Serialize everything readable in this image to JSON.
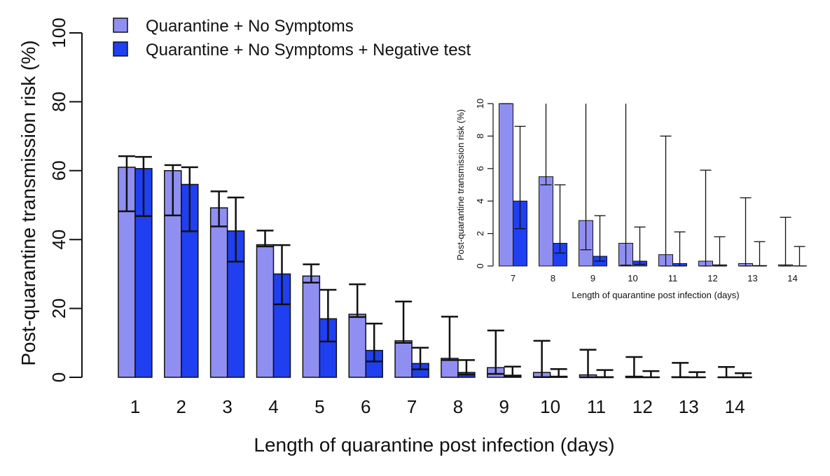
{
  "chart_data": [
    {
      "type": "bar",
      "title": "",
      "xlabel": "Length of quarantine post infection (days)",
      "ylabel": "Post-quarantine transmission risk (%)",
      "ylim": [
        0,
        100
      ],
      "yticks": [
        0,
        20,
        40,
        60,
        80,
        100
      ],
      "categories": [
        "1",
        "2",
        "3",
        "4",
        "5",
        "6",
        "7",
        "8",
        "9",
        "10",
        "11",
        "12",
        "13",
        "14"
      ],
      "legend_position": "top-left",
      "series": [
        {
          "name": "Quarantine + No Symptoms",
          "color": "#8f8ff2",
          "values": [
            61.0,
            60.0,
            49.2,
            38.5,
            29.4,
            18.3,
            10.6,
            5.5,
            2.8,
            1.4,
            0.7,
            0.3,
            0.15,
            0.07
          ],
          "lower": [
            48.2,
            47.0,
            43.8,
            38.0,
            27.5,
            17.5,
            10.0,
            5.0,
            1.0,
            0.05,
            0.0,
            0.0,
            0.0,
            0.0
          ],
          "upper": [
            64.2,
            61.6,
            54.0,
            42.6,
            32.8,
            27.0,
            22.0,
            17.6,
            13.6,
            10.6,
            8.0,
            5.9,
            4.2,
            3.0
          ]
        },
        {
          "name": "Quarantine + No Symptoms + Negative test",
          "color": "#1f3ff0",
          "values": [
            60.6,
            56.0,
            42.5,
            30.0,
            17.0,
            7.8,
            4.0,
            1.4,
            0.6,
            0.3,
            0.15,
            0.07,
            0.03,
            0.01
          ],
          "lower": [
            46.8,
            42.4,
            33.6,
            21.2,
            10.4,
            4.6,
            2.3,
            0.8,
            0.3,
            0.1,
            0.0,
            0.0,
            0.0,
            0.0
          ],
          "upper": [
            64.0,
            61.0,
            52.2,
            38.4,
            25.4,
            15.6,
            8.6,
            5.0,
            3.1,
            2.4,
            2.1,
            1.8,
            1.5,
            1.2
          ]
        }
      ]
    },
    {
      "type": "bar",
      "title": "",
      "xlabel": "Length of quarantine post infection (days)",
      "ylabel": "Post-quarantine transmission risk (%)",
      "ylim": [
        0,
        10
      ],
      "yticks": [
        0,
        2,
        4,
        6,
        8,
        10
      ],
      "categories": [
        "7",
        "8",
        "9",
        "10",
        "11",
        "12",
        "13",
        "14"
      ],
      "series": [
        {
          "name": "Quarantine + No Symptoms",
          "color": "#8f8ff2",
          "values": [
            10.6,
            5.5,
            2.8,
            1.4,
            0.7,
            0.3,
            0.15,
            0.07
          ],
          "lower": [
            10.0,
            5.0,
            1.0,
            0.05,
            0.0,
            0.0,
            0.0,
            0.0
          ],
          "upper": [
            22.0,
            17.6,
            13.6,
            10.6,
            8.0,
            5.9,
            4.2,
            3.0
          ]
        },
        {
          "name": "Quarantine + No Symptoms + Negative test",
          "color": "#1f3ff0",
          "values": [
            4.0,
            1.4,
            0.6,
            0.3,
            0.15,
            0.07,
            0.03,
            0.01
          ],
          "lower": [
            2.3,
            0.8,
            0.3,
            0.1,
            0.0,
            0.0,
            0.0,
            0.0
          ],
          "upper": [
            8.6,
            5.0,
            3.1,
            2.4,
            2.1,
            1.8,
            1.5,
            1.2
          ]
        }
      ]
    }
  ]
}
